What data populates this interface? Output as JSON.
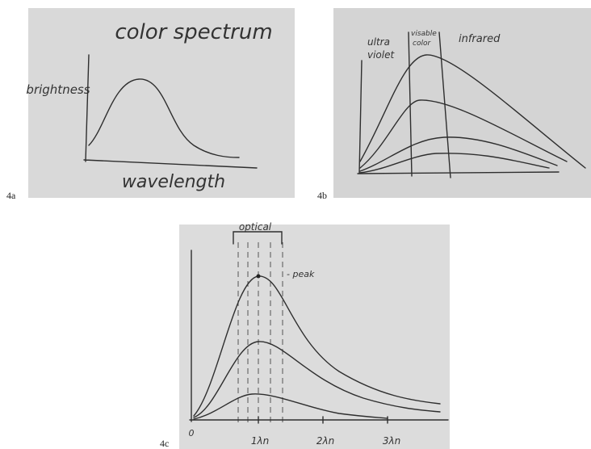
{
  "panels": [
    {
      "label": "4a",
      "title": "color spectrum",
      "y_axis_label": "brightness",
      "x_axis_label": "wavelength"
    },
    {
      "label": "4b",
      "regions": [
        "ultra",
        "violet",
        "visable",
        "color",
        "infrared"
      ]
    },
    {
      "label": "4c",
      "bracket_label": "optical",
      "annotation": "- peak",
      "x_tick_labels": [
        "0",
        "1λn",
        "2λn",
        "3λn"
      ]
    }
  ]
}
